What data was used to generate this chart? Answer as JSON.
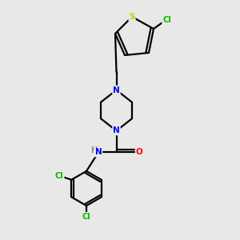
{
  "background_color": "#e8e8e8",
  "bond_color": "#000000",
  "atom_colors": {
    "N": "#0000ff",
    "O": "#ff0000",
    "S": "#cccc00",
    "Cl": "#00bb00",
    "C": "#000000",
    "H": "#888888"
  }
}
